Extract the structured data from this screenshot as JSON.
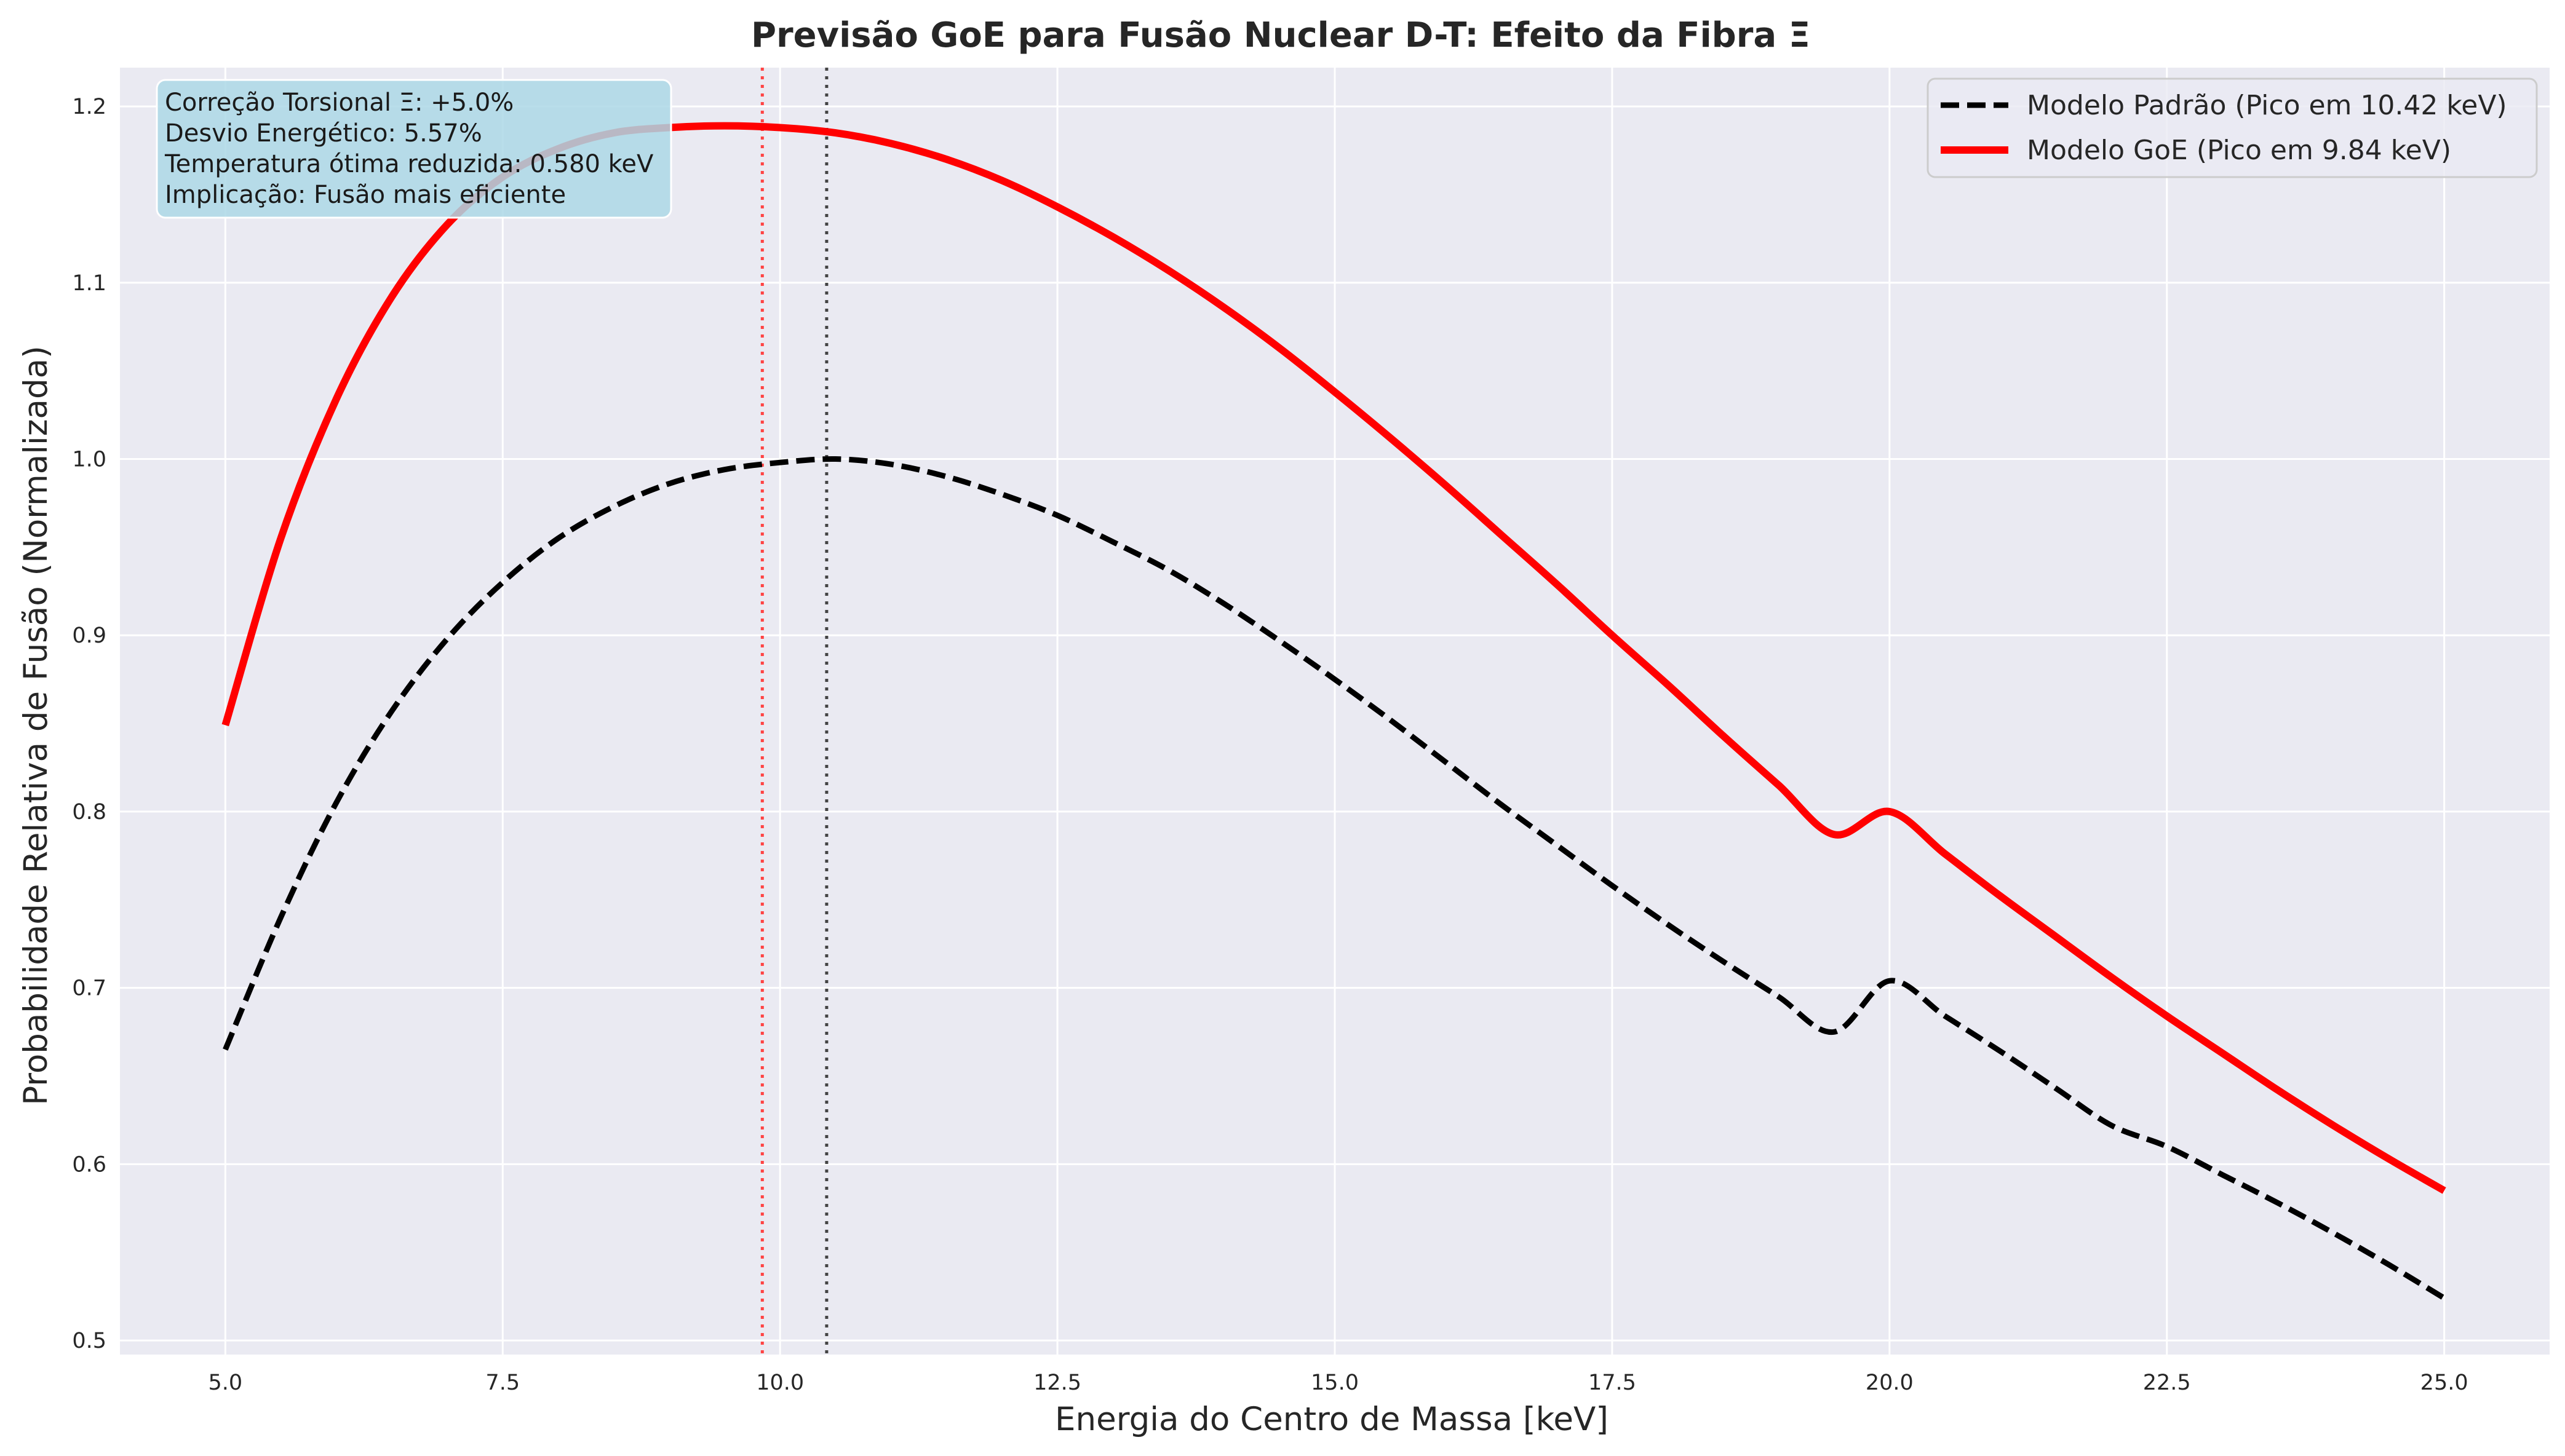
{
  "chart_data": {
    "type": "line",
    "title": "Previsão GoE para Fusão Nuclear D-T: Efeito da Fibra Ξ",
    "xlabel": "Energia do Centro de Massa [keV]",
    "ylabel": "Probabilidade Relativa de Fusão (Normalizada)",
    "xlim": [
      4.05,
      25.95
    ],
    "ylim": [
      0.492,
      1.222
    ],
    "xticks": [
      5.0,
      7.5,
      10.0,
      12.5,
      15.0,
      17.5,
      20.0,
      22.5,
      25.0
    ],
    "xtick_labels": [
      "5.0",
      "7.5",
      "10.0",
      "12.5",
      "15.0",
      "17.5",
      "20.0",
      "22.5",
      "25.0"
    ],
    "yticks": [
      0.5,
      0.6,
      0.7,
      0.8,
      0.9,
      1.0,
      1.1,
      1.2
    ],
    "ytick_labels": [
      "0.5",
      "0.6",
      "0.7",
      "0.8",
      "0.9",
      "1.0",
      "1.1",
      "1.2"
    ],
    "grid": true,
    "legend_position": "top-right",
    "x": [
      5.0,
      5.5,
      6.0,
      6.5,
      7.0,
      7.5,
      8.0,
      8.5,
      9.0,
      9.5,
      10.0,
      10.5,
      11.0,
      11.5,
      12.0,
      12.5,
      13.0,
      13.5,
      14.0,
      14.5,
      15.0,
      15.5,
      16.0,
      16.5,
      17.0,
      17.5,
      18.0,
      18.5,
      19.0,
      19.5,
      20.0,
      20.5,
      21.0,
      21.5,
      22.0,
      22.5,
      23.0,
      23.5,
      24.0,
      24.5,
      25.0
    ],
    "series": [
      {
        "name": "Modelo Padrão (Pico em 10.42 keV)",
        "color": "#000000",
        "style": "dashed",
        "peak": 10.42,
        "values": [
          0.665,
          0.74,
          0.805,
          0.857,
          0.898,
          0.93,
          0.955,
          0.973,
          0.986,
          0.994,
          0.998,
          1.0,
          0.997,
          0.99,
          0.98,
          0.968,
          0.953,
          0.937,
          0.918,
          0.897,
          0.875,
          0.852,
          0.828,
          0.804,
          0.781,
          0.758,
          0.736,
          0.715,
          0.695,
          0.675,
          0.704,
          0.684,
          0.664,
          0.643,
          0.622,
          0.61,
          0.594,
          0.578,
          0.561,
          0.543,
          0.524
        ]
      },
      {
        "name": "Modelo GoE (Pico em 9.84 keV)",
        "color": "#ff0000",
        "style": "solid",
        "peak": 9.84,
        "values": [
          0.849,
          0.955,
          1.034,
          1.092,
          1.133,
          1.16,
          1.176,
          1.185,
          1.188,
          1.189,
          1.188,
          1.185,
          1.179,
          1.17,
          1.158,
          1.143,
          1.126,
          1.107,
          1.086,
          1.063,
          1.038,
          1.012,
          0.985,
          0.957,
          0.929,
          0.9,
          0.872,
          0.843,
          0.815,
          0.787,
          0.8,
          0.776,
          0.752,
          0.729,
          0.706,
          0.684,
          0.663,
          0.642,
          0.622,
          0.603,
          0.585
        ]
      }
    ],
    "vlines": [
      {
        "x": 9.84,
        "color": "#ff4444"
      },
      {
        "x": 10.42,
        "color": "#444444"
      }
    ],
    "annotation": {
      "lines": [
        "Correção Torsional Ξ: +5.0%",
        "Desvio Energético: 5.57%",
        "Temperatura ótima reduzida: 0.580 keV",
        "Implicação: Fusão mais eficiente"
      ],
      "bg_color": "#add8e6"
    },
    "colors": {
      "axes_bg": "#eaeaf2",
      "grid": "#ffffff",
      "text": "#262626"
    }
  }
}
